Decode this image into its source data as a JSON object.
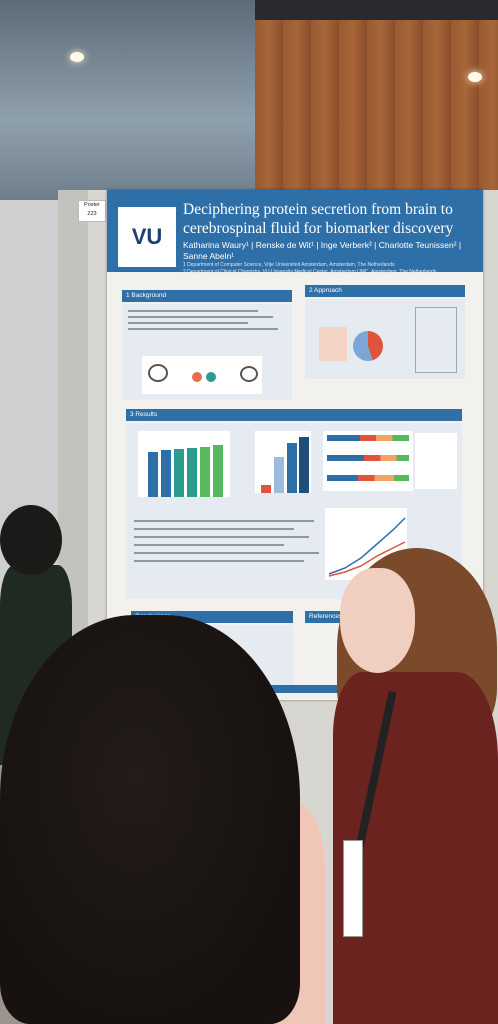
{
  "poster": {
    "badge": "Poster\n223",
    "logo": "VU",
    "title": "Deciphering protein secretion from brain to cerebrospinal fluid for biomarker discovery",
    "authors": "Katharina Waury¹ | Renske de Wit¹ | Inge Verberk² | Charlotte Teunissen² | Sanne Abeln¹",
    "affiliation_1": "1 Department of Computer Science, Vrije Universiteit Amsterdam, Amsterdam, The Netherlands",
    "affiliation_2": "2 Department of Clinical Chemistry, VU University Medical Center, Amsterdam UMC, Amsterdam, The Netherlands",
    "sections": {
      "background": "1 Background",
      "approach": "2 Approach",
      "results": "3 Results",
      "conclusion": "Conclusions",
      "references": "References"
    }
  },
  "colors": {
    "poster_blue": "#2f6fa8",
    "bar_blue": "#2f6fa8",
    "bar_teal": "#2a9d8f",
    "bar_green": "#57b85e",
    "slice_red": "#e0533d",
    "slice_blue": "#7aa7d6"
  }
}
